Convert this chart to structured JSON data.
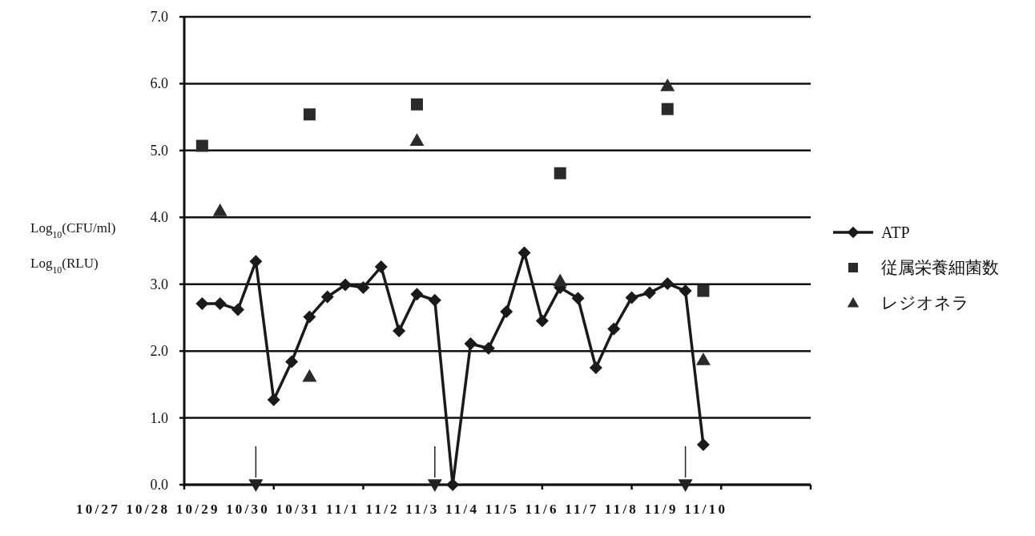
{
  "chart_data": {
    "type": "line",
    "ylabel": "Log$_{10}$(CFU/ml)\nLog$_{10}$(RLU)",
    "categories": [
      null,
      null,
      null,
      null,
      null,
      null,
      null,
      null,
      null,
      null,
      null,
      null,
      null,
      null,
      null,
      null,
      null,
      null,
      null,
      null,
      null,
      null,
      null,
      null,
      null,
      null,
      null,
      null,
      null,
      null,
      null,
      null,
      null,
      null,
      null,
      null
    ],
    "ylim": [
      0,
      7
    ],
    "yticks": [
      {
        "value": 0,
        "label": "0.0"
      },
      {
        "value": 1,
        "label": "1.0"
      },
      {
        "value": 2,
        "label": "2.0"
      },
      {
        "value": 3,
        "label": "3.0"
      },
      {
        "value": 4,
        "label": "4.0"
      },
      {
        "value": 5,
        "label": "5.0"
      },
      {
        "value": 6,
        "label": "6.0"
      },
      {
        "value": 7,
        "label": "7.0"
      }
    ],
    "grid": "y",
    "legend": "right",
    "tick_labels": "y",
    "series": [
      {
        "name": "ATP",
        "marker": "diamond",
        "color": "#1a1a1a",
        "values": [
          null,
          2.71,
          2.71,
          2.62,
          3.34,
          1.27,
          1.84,
          2.51,
          2.81,
          2.99,
          2.95,
          3.26,
          2.3,
          2.85,
          2.76,
          0.0,
          2.11,
          2.04,
          2.59,
          3.47,
          2.45,
          2.95,
          2.79,
          1.75,
          2.33,
          2.8,
          2.87,
          3.01,
          2.9,
          0.6,
          null,
          null,
          null,
          null,
          null,
          null
        ]
      },
      {
        "name": "従属栄養細菌数",
        "type": "scatter",
        "marker": "square",
        "color": "#2a2a2a",
        "values": [
          null,
          5.07,
          null,
          null,
          null,
          null,
          null,
          5.54,
          null,
          null,
          null,
          null,
          null,
          5.69,
          null,
          null,
          null,
          null,
          null,
          null,
          null,
          4.66,
          null,
          null,
          null,
          null,
          null,
          5.62,
          null,
          2.9,
          null,
          null,
          null,
          null,
          null,
          null
        ]
      },
      {
        "name": "レジオネラ",
        "type": "scatter",
        "marker": "triangle",
        "color": "#2a2a2a",
        "values": [
          null,
          null,
          4.1,
          null,
          null,
          null,
          null,
          1.62,
          null,
          null,
          null,
          null,
          null,
          5.15,
          null,
          null,
          null,
          null,
          null,
          null,
          null,
          3.05,
          null,
          null,
          null,
          null,
          null,
          5.97,
          null,
          1.87,
          null,
          null,
          null,
          null,
          null,
          null
        ]
      },
      {
        "type": "scatter",
        "marker": "triangle_down",
        "color": "#222222",
        "values": [
          null,
          null,
          null,
          null,
          0,
          null,
          null,
          null,
          null,
          null,
          null,
          null,
          null,
          null,
          0,
          null,
          null,
          null,
          null,
          null,
          null,
          null,
          null,
          null,
          null,
          null,
          null,
          null,
          0,
          null,
          null,
          null,
          null,
          null,
          null,
          null
        ]
      }
    ],
    "annotations": [
      "10/27 10/28 10/29 10/30 10/31 11/1 11/2 11/3 11/4 11/5 11/6 11/7 11/8 11/9 11/10"
    ]
  }
}
